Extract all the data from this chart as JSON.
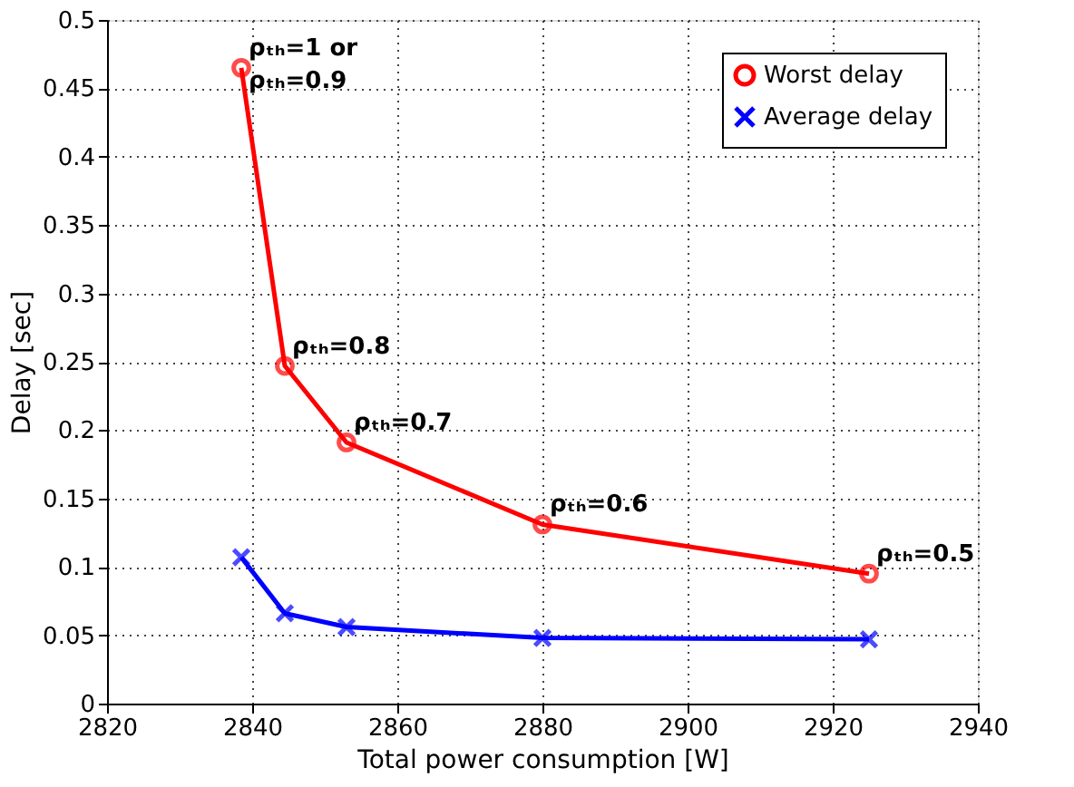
{
  "chart_data": {
    "type": "line",
    "xlabel": "Total power consumption [W]",
    "ylabel": "Delay [sec]",
    "x": [
      2838.5,
      2844.5,
      2853,
      2880,
      2925
    ],
    "series": [
      {
        "name": "Worst delay",
        "color": "#ff0000",
        "marker": "circle",
        "values": [
          0.465,
          0.247,
          0.191,
          0.131,
          0.095
        ]
      },
      {
        "name": "Average delay",
        "color": "#0000ff",
        "marker": "cross",
        "values": [
          0.107,
          0.066,
          0.056,
          0.048,
          0.047
        ]
      }
    ],
    "xlim": [
      2820,
      2940
    ],
    "xticks": [
      2820,
      2840,
      2860,
      2880,
      2900,
      2920,
      2940
    ],
    "ylim": [
      0,
      0.5
    ],
    "yticks": [
      0,
      0.05,
      0.1,
      0.15,
      0.2,
      0.25,
      0.3,
      0.35,
      0.4,
      0.45,
      0.5
    ],
    "grid": true,
    "legend": "top right",
    "line_style": "solid",
    "annotations": [
      {
        "text": "ρₜₕ=1 or\nρₜₕ=0.9",
        "x": 2838.5,
        "y": 0.465
      },
      {
        "text": "ρₜₕ=0.8",
        "x": 2844.5,
        "y": 0.247
      },
      {
        "text": "ρₜₕ=0.7",
        "x": 2853,
        "y": 0.191
      },
      {
        "text": "ρₜₕ=0.6",
        "x": 2880,
        "y": 0.131
      },
      {
        "text": "ρₜₕ=0.5",
        "x": 2925,
        "y": 0.095
      }
    ]
  }
}
